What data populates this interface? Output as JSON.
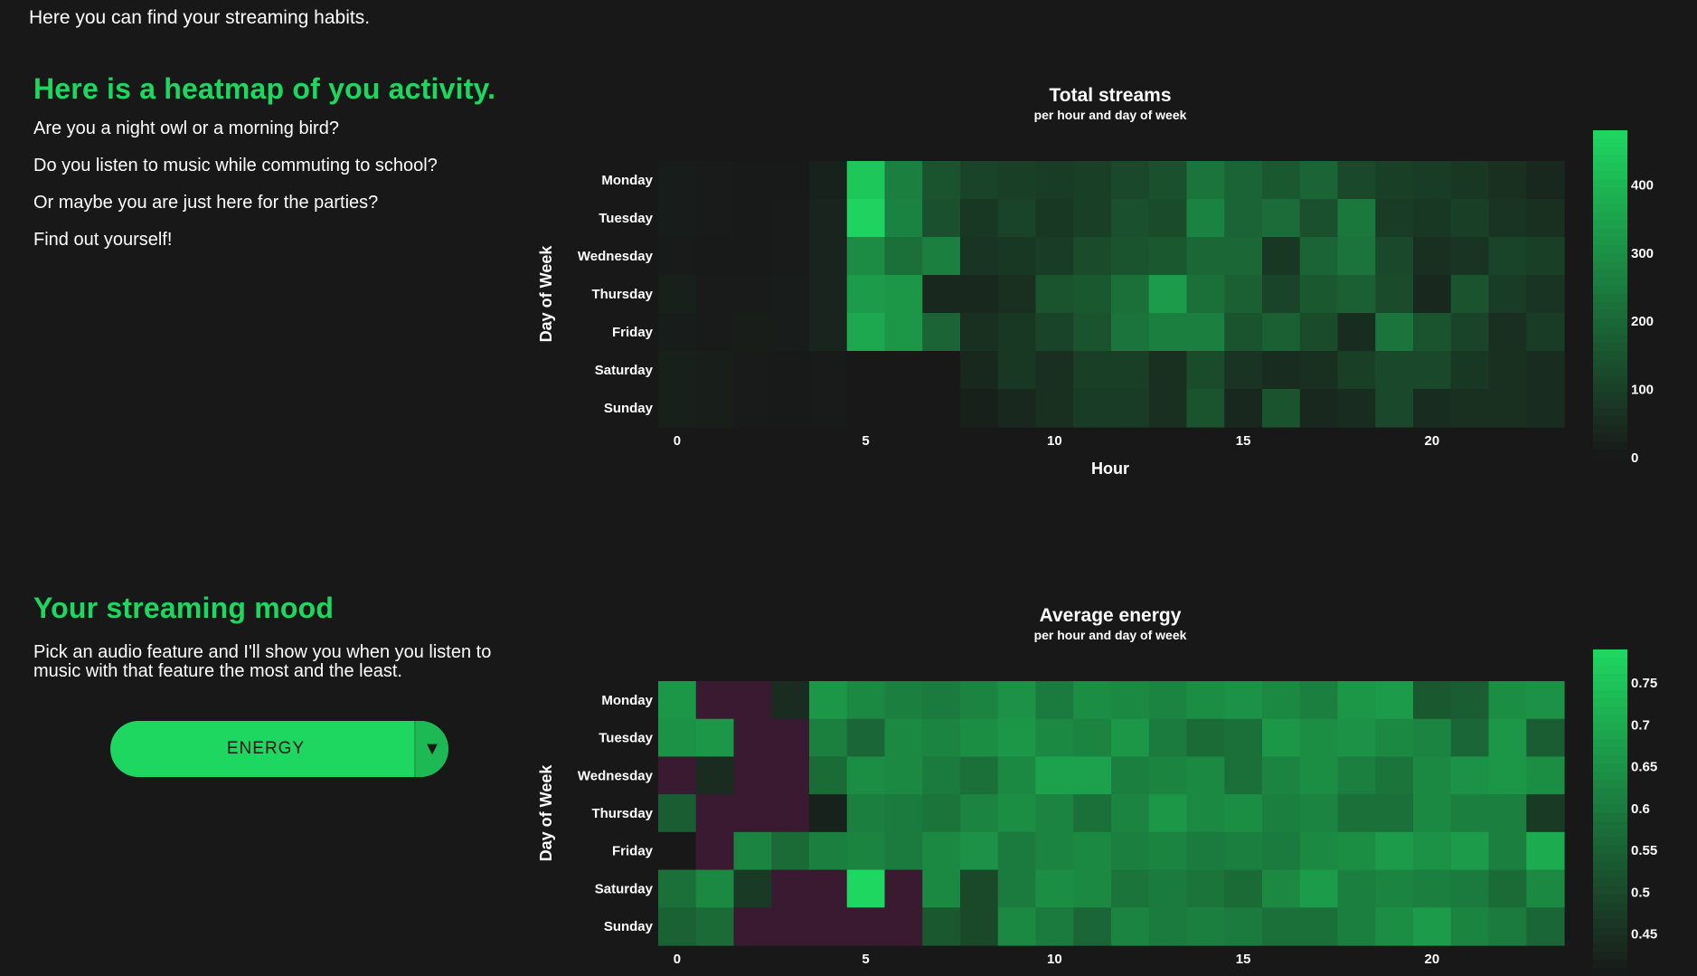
{
  "intro": "Here you can find your streaming habits.",
  "activity": {
    "heading": "Here is a heatmap of you activity.",
    "lines": [
      "Are you a night owl or a morning bird?",
      "Do you listen to music while commuting to school?",
      "Or maybe you are just here for the parties?",
      "Find out yourself!"
    ]
  },
  "mood": {
    "heading": "Your streaming mood",
    "description": "Pick an audio feature and I'll show you when you listen to music with that feature the most and the least.",
    "select_value": "ENERGY",
    "select_arrow": "▼"
  },
  "chart_data": [
    {
      "type": "heatmap",
      "title": "Total streams",
      "subtitle": "per hour and day of week",
      "xlabel": "Hour",
      "ylabel": "Day of Week",
      "x_ticks": [
        0,
        5,
        10,
        15,
        20
      ],
      "x": [
        0,
        1,
        2,
        3,
        4,
        5,
        6,
        7,
        8,
        9,
        10,
        11,
        12,
        13,
        14,
        15,
        16,
        17,
        18,
        19,
        20,
        21,
        22,
        23
      ],
      "y": [
        "Monday",
        "Tuesday",
        "Wednesday",
        "Thursday",
        "Friday",
        "Saturday",
        "Sunday"
      ],
      "colorbar_ticks": [
        0,
        100,
        200,
        300,
        400
      ],
      "zlim": [
        0,
        480
      ],
      "color_low": "#181818",
      "color_high": "#1ed760",
      "values": [
        [
          10,
          8,
          6,
          6,
          25,
          440,
          260,
          150,
          110,
          100,
          90,
          100,
          120,
          140,
          230,
          190,
          160,
          190,
          120,
          100,
          90,
          80,
          60,
          40
        ],
        [
          10,
          8,
          6,
          8,
          30,
          470,
          270,
          140,
          80,
          110,
          80,
          100,
          140,
          130,
          270,
          190,
          210,
          140,
          240,
          90,
          80,
          100,
          70,
          60
        ],
        [
          8,
          6,
          6,
          8,
          30,
          290,
          220,
          260,
          70,
          80,
          90,
          130,
          150,
          160,
          200,
          200,
          80,
          190,
          230,
          120,
          60,
          70,
          110,
          100
        ],
        [
          20,
          8,
          8,
          10,
          30,
          330,
          320,
          40,
          40,
          60,
          150,
          160,
          220,
          330,
          220,
          180,
          110,
          160,
          180,
          130,
          40,
          150,
          90,
          70
        ],
        [
          10,
          8,
          12,
          10,
          30,
          360,
          320,
          190,
          60,
          80,
          110,
          150,
          230,
          260,
          260,
          150,
          180,
          130,
          50,
          230,
          150,
          110,
          60,
          90
        ],
        [
          20,
          15,
          8,
          6,
          8,
          0,
          0,
          0,
          40,
          80,
          60,
          100,
          100,
          60,
          130,
          70,
          50,
          60,
          100,
          120,
          120,
          80,
          60,
          50
        ],
        [
          20,
          15,
          8,
          6,
          8,
          0,
          0,
          0,
          20,
          40,
          60,
          90,
          90,
          60,
          150,
          40,
          150,
          40,
          50,
          120,
          50,
          60,
          60,
          50
        ]
      ]
    },
    {
      "type": "heatmap",
      "title": "Average energy",
      "subtitle": "per hour and day of week",
      "xlabel": "",
      "ylabel": "Day of Week",
      "x_ticks": [
        0,
        5,
        10,
        15,
        20
      ],
      "x": [
        0,
        1,
        2,
        3,
        4,
        5,
        6,
        7,
        8,
        9,
        10,
        11,
        12,
        13,
        14,
        15,
        16,
        17,
        18,
        19,
        20,
        21,
        22,
        23
      ],
      "y": [
        "Monday",
        "Tuesday",
        "Wednesday",
        "Thursday",
        "Friday",
        "Saturday",
        "Sunday"
      ],
      "colorbar_ticks": [
        0.45,
        0.5,
        0.55,
        0.6,
        0.65,
        0.7,
        0.75
      ],
      "zlim": [
        0.4,
        0.79
      ],
      "color_low": "#181818",
      "color_high": "#1ed760",
      "missing_color": "#3a1a30",
      "values": [
        [
          0.66,
          null,
          null,
          0.44,
          0.66,
          0.63,
          0.61,
          0.6,
          0.62,
          0.65,
          0.6,
          0.64,
          0.63,
          0.62,
          0.64,
          0.65,
          0.63,
          0.61,
          0.66,
          0.67,
          0.53,
          0.54,
          0.64,
          0.65
        ],
        [
          0.65,
          0.66,
          null,
          null,
          0.61,
          0.56,
          0.63,
          0.62,
          0.64,
          0.66,
          0.63,
          0.62,
          0.66,
          0.6,
          0.57,
          0.58,
          0.66,
          0.64,
          0.65,
          0.63,
          0.62,
          0.56,
          0.66,
          0.54
        ],
        [
          null,
          0.44,
          null,
          null,
          0.57,
          0.64,
          0.63,
          0.6,
          0.58,
          0.63,
          0.68,
          0.68,
          0.61,
          0.62,
          0.63,
          0.58,
          0.62,
          0.64,
          0.61,
          0.59,
          0.63,
          0.65,
          0.66,
          0.64
        ],
        [
          0.54,
          null,
          null,
          null,
          0.42,
          0.61,
          0.6,
          0.59,
          0.62,
          0.64,
          0.62,
          0.58,
          0.62,
          0.66,
          0.63,
          0.64,
          0.61,
          0.62,
          0.58,
          0.58,
          0.63,
          0.61,
          0.61,
          0.47
        ],
        [
          0.4,
          null,
          0.62,
          0.57,
          0.61,
          0.62,
          0.6,
          0.63,
          0.65,
          0.6,
          0.62,
          0.63,
          0.61,
          0.62,
          0.6,
          0.61,
          0.6,
          0.63,
          0.64,
          0.67,
          0.65,
          0.67,
          0.61,
          0.7
        ],
        [
          0.58,
          0.63,
          0.47,
          null,
          null,
          0.79,
          null,
          0.63,
          0.5,
          0.6,
          0.64,
          0.63,
          0.59,
          0.6,
          0.59,
          0.57,
          0.63,
          0.67,
          0.61,
          0.62,
          0.61,
          0.6,
          0.57,
          0.63
        ],
        [
          0.55,
          0.57,
          null,
          null,
          null,
          null,
          null,
          0.53,
          0.5,
          0.63,
          0.6,
          0.56,
          0.62,
          0.6,
          0.61,
          0.6,
          0.58,
          0.58,
          0.61,
          0.64,
          0.67,
          0.62,
          0.6,
          0.56
        ]
      ]
    }
  ]
}
